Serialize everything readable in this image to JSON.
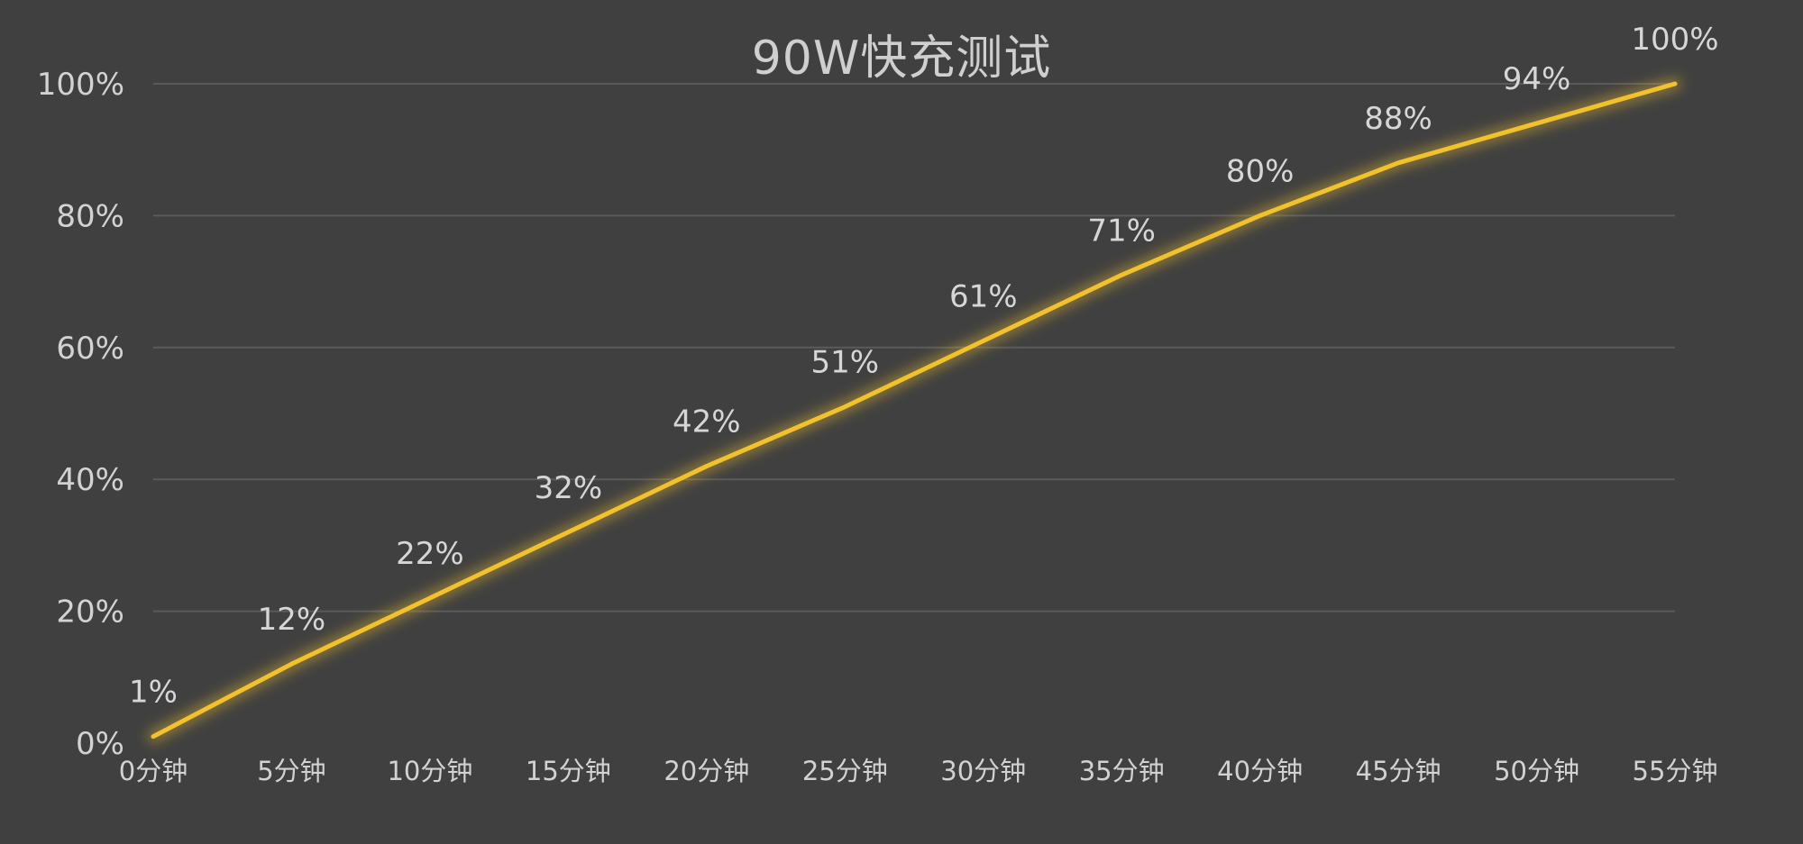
{
  "chart_data": {
    "type": "line",
    "title": "90W快充测试",
    "xlabel": "",
    "ylabel": "",
    "categories": [
      "0分钟",
      "5分钟",
      "10分钟",
      "15分钟",
      "20分钟",
      "25分钟",
      "30分钟",
      "35分钟",
      "40分钟",
      "45分钟",
      "50分钟",
      "55分钟"
    ],
    "values": [
      1,
      12,
      22,
      32,
      42,
      51,
      61,
      71,
      80,
      88,
      94,
      100
    ],
    "data_labels": [
      "1%",
      "12%",
      "22%",
      "32%",
      "42%",
      "51%",
      "61%",
      "71%",
      "80%",
      "88%",
      "94%",
      "100%"
    ],
    "ylim": [
      0,
      100
    ],
    "yticks": [
      0,
      20,
      40,
      60,
      80,
      100
    ],
    "ytick_labels": [
      "0%",
      "20%",
      "40%",
      "60%",
      "80%",
      "100%"
    ],
    "grid": true,
    "legend": "none",
    "colors": {
      "background": "#404040",
      "line": "#f2c12e",
      "grid": "#5a5a5a",
      "text": "#d2d2d2"
    }
  }
}
